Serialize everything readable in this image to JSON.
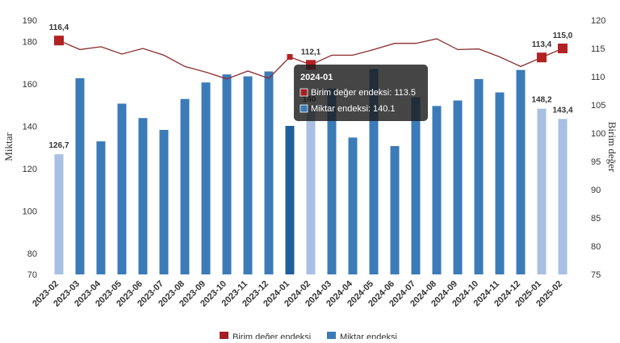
{
  "chart_data": {
    "type": "bar",
    "categories": [
      "2023-02",
      "2023-03",
      "2023-04",
      "2023-05",
      "2023-06",
      "2023-07",
      "2023-08",
      "2023-09",
      "2023-10",
      "2023-11",
      "2023-12",
      "2024-01",
      "2024-02",
      "2024-03",
      "2024-04",
      "2024-05",
      "2024-06",
      "2024-07",
      "2024-08",
      "2024-09",
      "2024-10",
      "2024-11",
      "2024-12",
      "2025-01",
      "2025-02"
    ],
    "series": [
      {
        "name": "Miktar endeksi",
        "type": "bar",
        "axis": "left",
        "values": [
          126.7,
          162.6,
          132.8,
          150.6,
          143.8,
          138.2,
          152.8,
          160.6,
          164.4,
          163.5,
          165.8,
          140.1,
          149.6,
          157.7,
          134.6,
          167.0,
          130.6,
          153.6,
          149.5,
          152.1,
          162.2,
          155.9,
          166.5,
          148.2,
          143.4
        ],
        "color": "#3b7bb8",
        "highlight_color": "#a9bfe3",
        "active_color": "#1f5f9e"
      },
      {
        "name": "Birim değer endeksi",
        "type": "line",
        "axis": "right",
        "values": [
          116.4,
          114.8,
          115.3,
          114.0,
          115.0,
          113.8,
          111.8,
          110.8,
          109.6,
          111.0,
          109.7,
          113.5,
          112.1,
          113.8,
          113.8,
          114.8,
          115.9,
          115.9,
          116.7,
          114.8,
          114.9,
          113.5,
          111.8,
          113.4,
          115.0
        ],
        "color": "#8b2d2d",
        "marker_color": "#b22222"
      }
    ],
    "data_labels": {
      "bars": [
        {
          "index": 0,
          "text": "126,7"
        },
        {
          "index": 23,
          "text": "148,2"
        },
        {
          "index": 24,
          "text": "143,4"
        }
      ],
      "line": [
        {
          "index": 0,
          "text": "116,4"
        },
        {
          "index": 12,
          "text": "112,1"
        },
        {
          "index": 23,
          "text": "113,4"
        },
        {
          "index": 24,
          "text": "115,0"
        }
      ],
      "hidden_bar_label": "140"
    },
    "light_bar_indices": [
      0,
      12,
      23,
      24
    ],
    "active_bar_index": 11,
    "line_marker_indices": [
      0,
      12,
      23,
      24
    ],
    "left_axis": {
      "title": "Miktar",
      "ticks": [
        70,
        80,
        100,
        120,
        140,
        160,
        180,
        190
      ],
      "tick_labels": [
        "70",
        "80",
        "100",
        "120",
        "140",
        "160",
        "180",
        "190"
      ],
      "range": [
        70,
        190
      ]
    },
    "right_axis": {
      "title": "Birim değer",
      "ticks": [
        75,
        80,
        85,
        90,
        95,
        100,
        105,
        110,
        115,
        120
      ],
      "tick_labels": [
        "75",
        "80",
        "85",
        "90",
        "95",
        "100",
        "105",
        "110",
        "115",
        "120"
      ],
      "range": [
        75,
        120
      ]
    },
    "grid": false,
    "legend": {
      "position": "bottom",
      "items": [
        {
          "label": "Birim değer endeksi",
          "color": "#a21f24"
        },
        {
          "label": "Miktar endeksi",
          "color": "#3b7bb8"
        }
      ]
    },
    "tooltip": {
      "title": "2024-01",
      "rows": [
        {
          "label": "Birim değer endeksi: 113.5",
          "color": "#a21f24"
        },
        {
          "label": "Miktar endeksi: 140.1",
          "color": "#3b7bb8"
        }
      ]
    }
  }
}
